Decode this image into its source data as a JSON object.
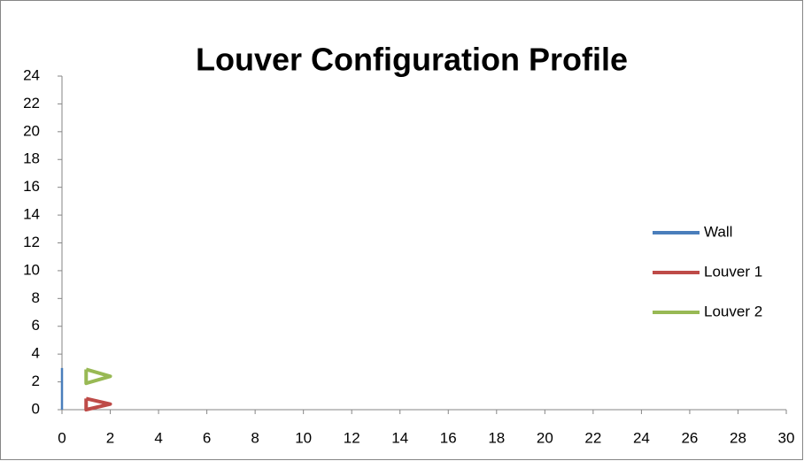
{
  "chart_data": {
    "type": "line",
    "title": "Louver Configuration Profile",
    "series": [
      {
        "name": "Wall",
        "color": "#4a7ebb",
        "x": [
          0,
          0
        ],
        "values": [
          0,
          3
        ]
      },
      {
        "name": "Louver 1",
        "color": "#be4b48",
        "x": [
          1,
          2,
          1,
          1
        ],
        "values": [
          0.8,
          0.4,
          0,
          0.8
        ]
      },
      {
        "name": "Louver 2",
        "color": "#98b954",
        "x": [
          1,
          2,
          1,
          1
        ],
        "values": [
          2.9,
          2.4,
          1.9,
          2.9
        ]
      }
    ],
    "xlim": [
      0,
      30
    ],
    "xticks": [
      0,
      2,
      4,
      6,
      8,
      10,
      12,
      14,
      16,
      18,
      20,
      22,
      24,
      26,
      28,
      30
    ],
    "ylim": [
      0,
      24
    ],
    "yticks": [
      0,
      2,
      4,
      6,
      8,
      10,
      12,
      14,
      16,
      18,
      20,
      22,
      24
    ],
    "grid": false,
    "legend": "right"
  }
}
